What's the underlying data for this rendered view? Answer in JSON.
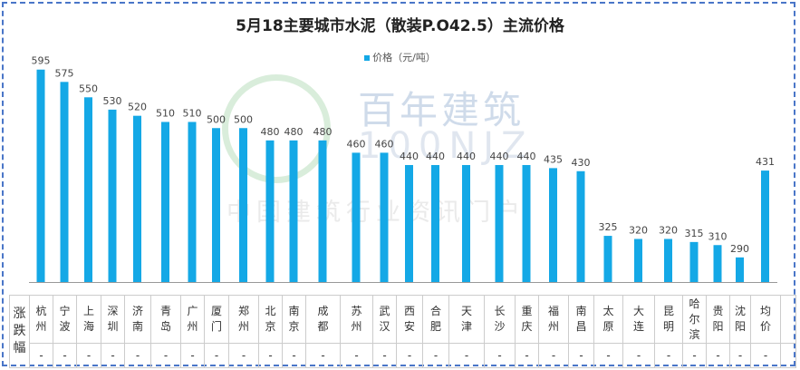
{
  "title": "5月18主要城市水泥（散装P.O42.5）主流价格",
  "watermark": {
    "brand": "百年建筑",
    "code": "100NJZ",
    "slogan": "中国建筑行业资讯门户"
  },
  "table": {
    "row_label": "涨跌幅"
  },
  "chart_data": {
    "type": "bar",
    "title": "5月18主要城市水泥（散装P.O42.5）主流价格",
    "legend": {
      "position": "top",
      "entries": [
        "价格（元/吨）"
      ]
    },
    "color": "#14a8e6",
    "grid": false,
    "ylim": [
      250,
      620
    ],
    "categories": [
      "杭州",
      "宁波",
      "上海",
      "深圳",
      "济南",
      "青岛",
      "广州",
      "厦门",
      "郑州",
      "北京",
      "南京",
      "成都",
      "苏州",
      "武汉",
      "西安",
      "合肥",
      "天津",
      "长沙",
      "重庆",
      "福州",
      "南昌",
      "太原",
      "大连",
      "昆明",
      "哈尔滨",
      "贵阳",
      "沈阳",
      "均价"
    ],
    "series": [
      {
        "name": "价格（元/吨）",
        "values": [
          595,
          575,
          550,
          530,
          520,
          510,
          510,
          500,
          500,
          480,
          480,
          480,
          460,
          460,
          440,
          440,
          440,
          440,
          440,
          435,
          430,
          325,
          320,
          320,
          315,
          310,
          290,
          431
        ]
      }
    ],
    "change": [
      "-",
      "-",
      "-",
      "-",
      "-",
      "-",
      "-",
      "-",
      "-",
      "-",
      "-",
      "-",
      "-",
      "-",
      "-",
      "-",
      "-",
      "-",
      "-",
      "-",
      "-",
      "-",
      "-",
      "-",
      "-",
      "-",
      "-",
      "-"
    ]
  }
}
